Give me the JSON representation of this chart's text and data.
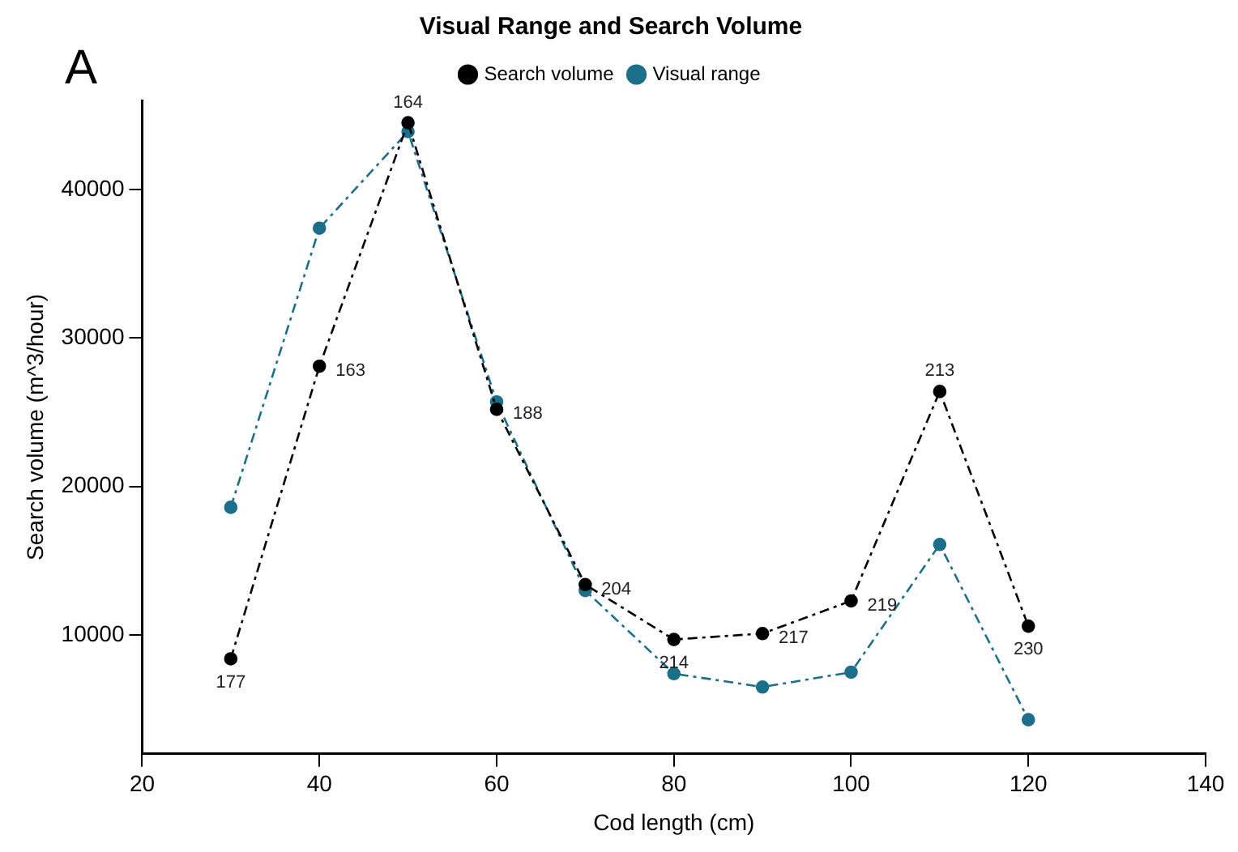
{
  "chart_data": {
    "type": "line",
    "title": "Visual Range and Search Volume",
    "xlabel": "Cod length (cm)",
    "ylabel": "Search volume (m^3/hour)",
    "x": [
      30,
      40,
      50,
      60,
      70,
      80,
      90,
      100,
      110,
      120
    ],
    "series": [
      {
        "name": "Search volume",
        "color": "#000000",
        "values": [
          8400,
          28100,
          44500,
          25200,
          13400,
          9700,
          10100,
          12300,
          26400,
          10600
        ]
      },
      {
        "name": "Visual range",
        "color": "#1b6f8a",
        "values": [
          18600,
          37400,
          43900,
          25700,
          13000,
          7400,
          6500,
          7500,
          16100,
          4300
        ]
      }
    ],
    "xlim": [
      20,
      140
    ],
    "xticks": [
      20,
      40,
      60,
      80,
      100,
      120,
      140
    ],
    "ylim": [
      2000,
      46000
    ],
    "yticks": [
      10000,
      20000,
      30000,
      40000
    ],
    "grid": false,
    "legend": "top",
    "marker": "circle",
    "line_style": "dashed",
    "annotations": [
      "A",
      {
        "text": "177",
        "x": 30,
        "y": 8400
      },
      {
        "text": "163",
        "x": 40,
        "y": 28100
      },
      {
        "text": "164",
        "x": 50,
        "y": 44500
      },
      {
        "text": "188",
        "x": 60,
        "y": 25200
      },
      {
        "text": "204",
        "x": 70,
        "y": 13400
      },
      {
        "text": "214",
        "x": 80,
        "y": 9700
      },
      {
        "text": "217",
        "x": 90,
        "y": 10100
      },
      {
        "text": "219",
        "x": 100,
        "y": 12300
      },
      {
        "text": "213",
        "x": 110,
        "y": 26400
      },
      {
        "text": "230",
        "x": 120,
        "y": 10600
      }
    ]
  }
}
